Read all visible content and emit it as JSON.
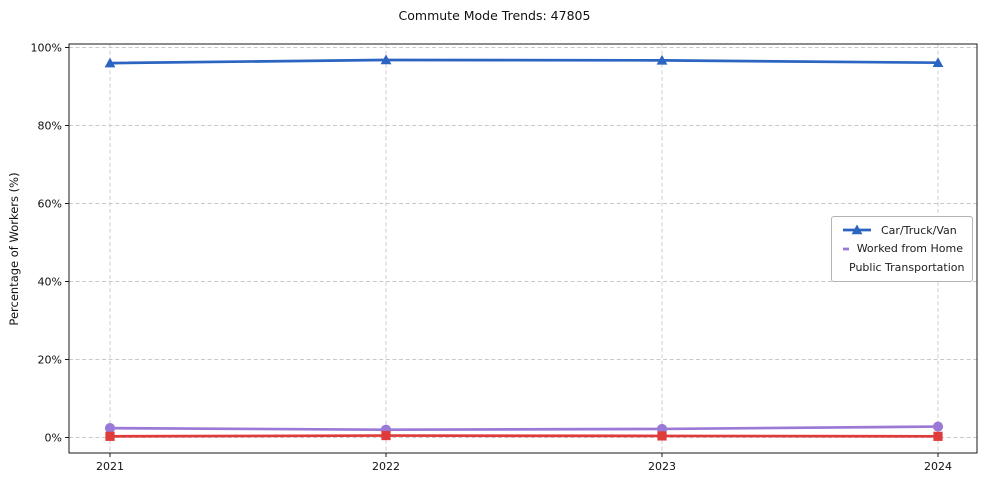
{
  "chart_data": {
    "type": "line",
    "title": "Commute Mode Trends: 47805",
    "xlabel": "",
    "ylabel": "Percentage of Workers (%)",
    "x": [
      2021,
      2022,
      2023,
      2024
    ],
    "series": [
      {
        "name": "Car/Truck/Van",
        "color": "#2b64c1",
        "marker": "triangle",
        "values": [
          96.0,
          96.8,
          96.7,
          96.1
        ]
      },
      {
        "name": "Worked from Home",
        "color": "#9b79d6",
        "marker": "circle",
        "values": [
          2.4,
          2.0,
          2.2,
          2.8
        ]
      },
      {
        "name": "Public Transportation",
        "color": "#e03b3b",
        "marker": "square",
        "values": [
          0.3,
          0.5,
          0.4,
          0.3
        ]
      }
    ],
    "ylim": [
      0,
      100
    ],
    "yticks": [
      0,
      20,
      40,
      60,
      80,
      100
    ],
    "ytick_labels": [
      "0%",
      "20%",
      "40%",
      "60%",
      "80%",
      "100%"
    ],
    "grid": true,
    "grid_style": "dashed",
    "grid_color": "#c9c9c9",
    "legend_position": "center right",
    "background_color": "#ffffff"
  }
}
